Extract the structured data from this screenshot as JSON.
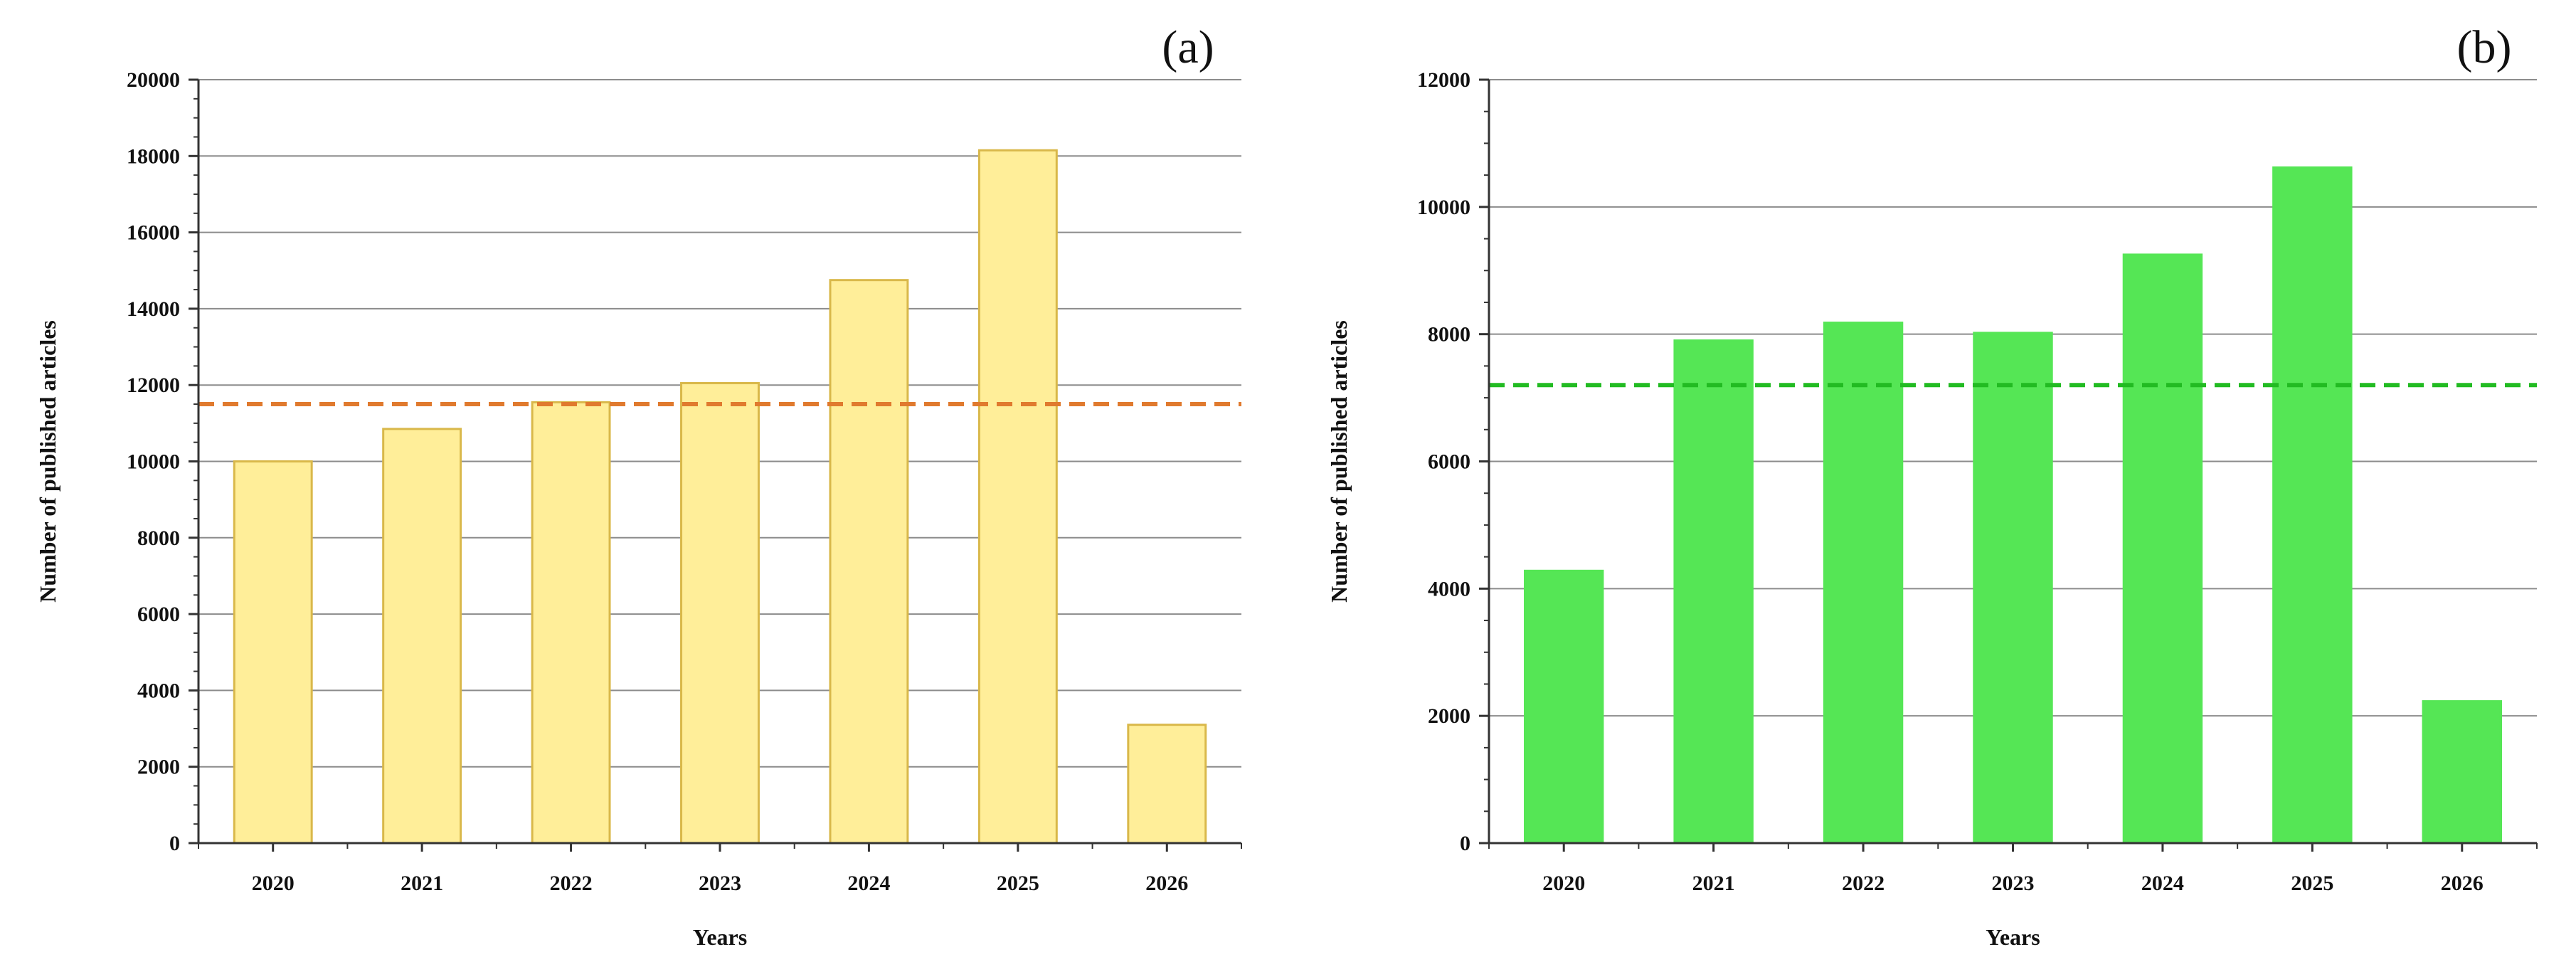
{
  "chart_data": [
    {
      "type": "bar",
      "panel_label": "(a)",
      "categories": [
        "2020",
        "2021",
        "2022",
        "2023",
        "2024",
        "2025",
        "2026"
      ],
      "values": [
        10000,
        10850,
        11550,
        12050,
        14750,
        18150,
        3100
      ],
      "reference_line": 11500,
      "ylim": [
        0,
        20000
      ],
      "yticks": [
        0,
        2000,
        4000,
        6000,
        8000,
        10000,
        12000,
        14000,
        16000,
        18000,
        20000
      ],
      "xlabel": "Years",
      "ylabel": "Number of published articles",
      "grid": true,
      "bar_color": "#FFEE99",
      "bar_edge": "#D9B84A",
      "line_color": "#E07A2E"
    },
    {
      "type": "bar",
      "panel_label": "(b)",
      "categories": [
        "2020",
        "2021",
        "2022",
        "2023",
        "2024",
        "2025",
        "2026"
      ],
      "values": [
        4280,
        7900,
        8180,
        8020,
        9250,
        10620,
        2230
      ],
      "reference_line": 7200,
      "ylim": [
        0,
        12000
      ],
      "yticks": [
        0,
        2000,
        4000,
        6000,
        8000,
        10000,
        12000
      ],
      "xlabel": "Years",
      "ylabel": "Number of published articles",
      "grid": true,
      "bar_color": "#55E655",
      "bar_edge": "#55E655",
      "line_color": "#22BB22"
    }
  ]
}
